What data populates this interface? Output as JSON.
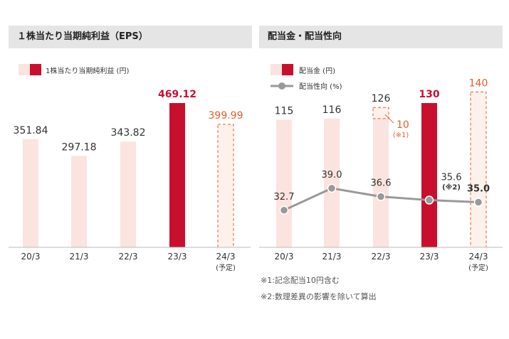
{
  "colors": {
    "bar_light": "#fbe3df",
    "bar_accent": "#c8102e",
    "forecast": "#e95d2a",
    "line": "#999999",
    "axis": "#bbbbbb"
  },
  "chart_data": [
    {
      "id": "eps",
      "type": "bar",
      "title": "１株当たり当期純利益（EPS）",
      "legend": [
        {
          "label": "1株当たり当期純利益 (円)"
        }
      ],
      "categories": [
        "20/3",
        "21/3",
        "22/3",
        "23/3",
        "24/3"
      ],
      "category_notes": [
        "",
        "",
        "",
        "",
        "(予定)"
      ],
      "values": [
        351.84,
        297.18,
        343.82,
        469.12,
        399.99
      ],
      "value_labels": [
        "351.84",
        "297.18",
        "343.82",
        "469.12",
        "399.99"
      ],
      "styles": [
        "light",
        "light",
        "light",
        "accent",
        "forecast"
      ],
      "ylim": [
        0,
        469.12
      ]
    },
    {
      "id": "dividend",
      "type": "bar",
      "title": "配当金・配当性向",
      "legend": [
        {
          "label": "配当金 (円)"
        },
        {
          "label": "配当性向 (%)"
        }
      ],
      "categories": [
        "20/3",
        "21/3",
        "22/3",
        "23/3",
        "24/3"
      ],
      "category_notes": [
        "",
        "",
        "",
        "",
        "(予定)"
      ],
      "series": [
        {
          "name": "配当金 (円)",
          "type": "bar",
          "values": [
            115,
            116,
            126,
            130,
            140
          ],
          "value_labels": [
            "115",
            "116",
            "126",
            "130",
            "140"
          ],
          "styles": [
            "light",
            "light",
            "light",
            "accent",
            "forecast"
          ]
        },
        {
          "name": "配当性向 (%)",
          "type": "line",
          "values": [
            32.7,
            39.0,
            36.6,
            35.6,
            35.0
          ],
          "value_labels": [
            "32.7",
            "39.0",
            "36.6",
            "35.6",
            "35.0"
          ]
        }
      ],
      "annotations": {
        "commemorative_value": 10,
        "commemorative_label": "10",
        "commemorative_note": "(※1)",
        "payout_note": "(※2)"
      },
      "payout_ylim": [
        0,
        100
      ]
    }
  ],
  "footnotes": [
    "※1:記念配当10円含む",
    "※2:数理差異の影響を除いて算出"
  ]
}
